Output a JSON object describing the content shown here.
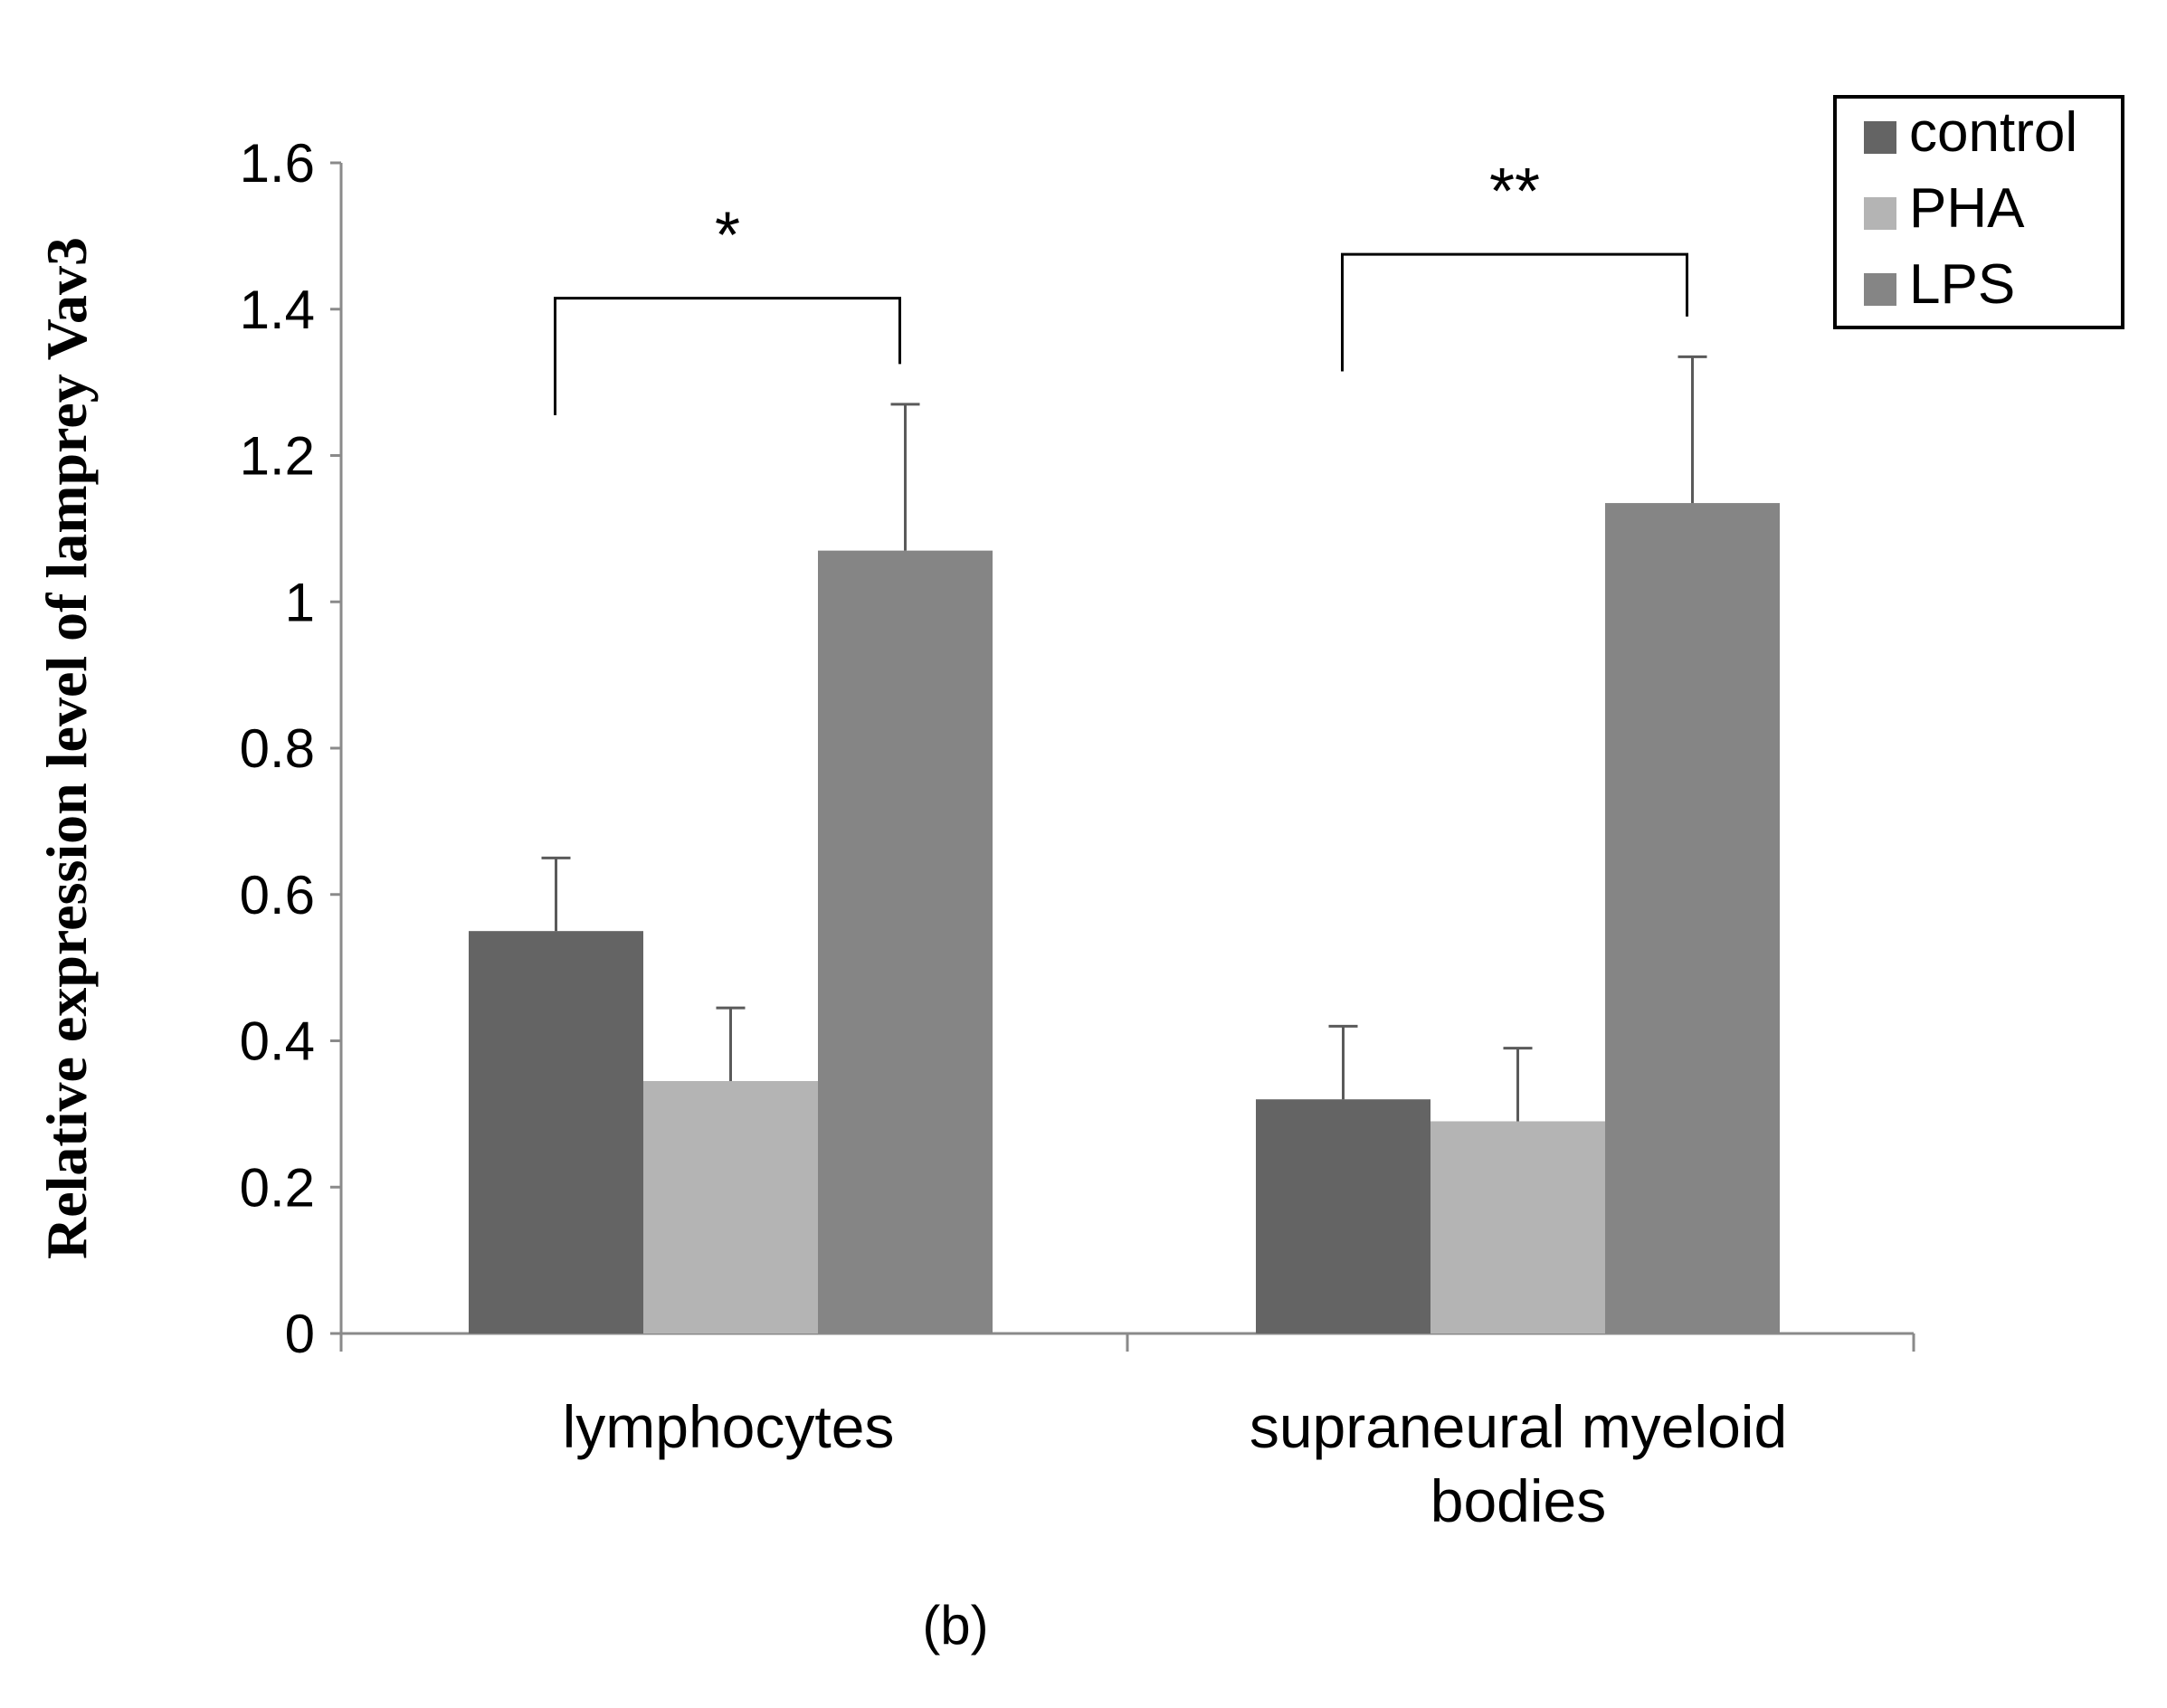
{
  "chart_data": {
    "type": "bar",
    "title": "",
    "panel_label": "(b)",
    "ylabel": "Relative expression level of lamprey Vav3",
    "xlabel": "",
    "ylim": [
      0,
      1.6
    ],
    "yticks": [
      "0",
      "0.2",
      "0.4",
      "0.6",
      "0.8",
      "1",
      "1.2",
      "1.4",
      "1.6"
    ],
    "categories": [
      {
        "lines": [
          "lymphocytes"
        ]
      },
      {
        "lines": [
          "supraneural myeloid",
          "bodies"
        ]
      }
    ],
    "series": [
      {
        "name": "control",
        "color": "#646464",
        "values": [
          0.55,
          0.32
        ],
        "errors": [
          0.1,
          0.1
        ]
      },
      {
        "name": "PHA",
        "color": "#b4b4b4",
        "values": [
          0.345,
          0.29
        ],
        "errors": [
          0.1,
          0.1
        ]
      },
      {
        "name": "LPS",
        "color": "#858585",
        "values": [
          1.07,
          1.135
        ],
        "errors": [
          0.2,
          0.2
        ]
      }
    ],
    "significance": [
      {
        "category": 0,
        "label": "*",
        "bracket_left": 1.255,
        "bracket_right": 1.325,
        "bracket_top": 1.415
      },
      {
        "category": 1,
        "label": "**",
        "bracket_left": 1.315,
        "bracket_right": 1.39,
        "bracket_top": 1.475
      }
    ],
    "legend_position": "top-right",
    "grid": false
  }
}
